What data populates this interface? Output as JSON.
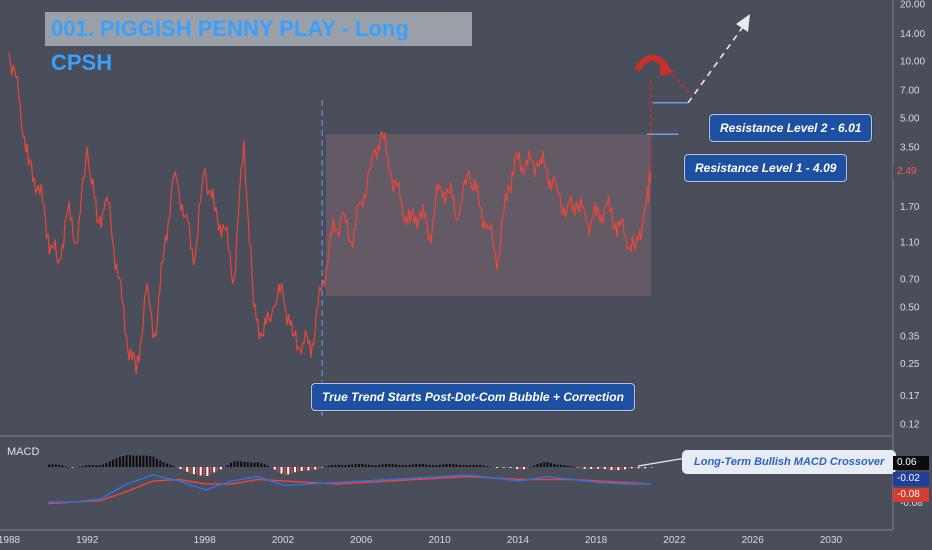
{
  "title": "001. PIGGISH PENNY PLAY - Long CPSH",
  "macd_label": "MACD",
  "annotations": {
    "resistance2": "Resistance Level 2 - 6.01",
    "resistance1": "Resistance Level 1 - 4.09",
    "trend": "True Trend Starts Post-Dot-Com Bubble + Correction",
    "macd_note": "Long-Term Bullish MACD Crossover"
  },
  "colors": {
    "background": "#4a4e5a",
    "price": "#e8473a",
    "box": "#7a6470",
    "label_blue": "#1e50a2",
    "macd_line": "#2e6fe0",
    "signal_line": "#e8473a",
    "resistance": "#6a9df0"
  },
  "price_axis": {
    "scale": "log",
    "ticks": [
      "20.00",
      "14.00",
      "10.00",
      "7.00",
      "5.00",
      "3.50",
      "2.49",
      "1.70",
      "1.10",
      "0.70",
      "0.50",
      "0.35",
      "0.25",
      "0.17",
      "0.12"
    ],
    "current_price": "2.49"
  },
  "macd_axis": {
    "values": [
      "0.06",
      "-0.02",
      "-0.08"
    ]
  },
  "time_axis": {
    "ticks": [
      "1988",
      "1992",
      "1998",
      "2002",
      "2006",
      "2010",
      "2014",
      "2018",
      "2022",
      "2026",
      "2030"
    ]
  },
  "chart_data": {
    "type": "line",
    "title": "001. PIGGISH PENNY PLAY - Long CPSH",
    "yscale": "log",
    "ylim": [
      0.1,
      22
    ],
    "xlim": [
      1988,
      2031
    ],
    "series": [
      {
        "x": [
          1988.0,
          1988.5,
          1989.0,
          1989.5,
          1990.0,
          1990.5,
          1991.0,
          1991.5,
          1992.0,
          1992.5,
          1993.0,
          1993.5,
          1994.0,
          1994.5,
          1995.0,
          1995.5,
          1996.0,
          1996.5,
          1997.0,
          1997.5,
          1998.0,
          1998.5,
          1999.0,
          1999.5,
          2000.0,
          2000.5,
          2001.0,
          2001.5,
          2002.0,
          2002.5,
          2003.0,
          2003.5,
          2004.0,
          2004.5,
          2005.0,
          2005.5,
          2006.0,
          2006.5,
          2007.0,
          2007.5,
          2008.0,
          2008.5,
          2009.0,
          2009.5,
          2010.0,
          2010.5,
          2011.0,
          2011.5,
          2012.0,
          2012.5,
          2013.0,
          2013.5,
          2014.0,
          2014.5,
          2015.0,
          2015.5,
          2016.0,
          2016.5,
          2017.0,
          2017.5,
          2018.0,
          2018.5,
          2019.0,
          2019.5,
          2020.0,
          2020.5,
          2020.8
        ],
        "values": [
          11,
          6.5,
          2.8,
          2.2,
          1.2,
          0.85,
          1.6,
          1.1,
          3.5,
          1.4,
          1.9,
          0.85,
          0.35,
          0.22,
          0.6,
          0.35,
          1.2,
          2.6,
          1.5,
          0.9,
          2.7,
          1.6,
          1.3,
          0.7,
          3.8,
          0.5,
          0.35,
          0.5,
          0.6,
          0.35,
          0.32,
          0.32,
          0.65,
          1.2,
          1.5,
          1.1,
          1.8,
          2.8,
          4.2,
          2.6,
          1.8,
          1.4,
          1.6,
          1.2,
          2.2,
          2.0,
          1.5,
          2.6,
          1.8,
          1.3,
          0.9,
          2.2,
          3.0,
          2.8,
          2.9,
          2.6,
          2.1,
          1.6,
          1.8,
          1.4,
          1.5,
          1.7,
          1.4,
          1.2,
          1.0,
          1.7,
          2.49
        ]
      }
    ],
    "macd": {
      "values": [
        -0.12,
        -0.12,
        -0.1,
        0.0,
        0.06,
        0.02,
        -0.04,
        0.02,
        0.05,
        -0.01,
        0.0,
        0.01,
        0.02,
        0.03,
        0.04,
        0.05,
        0.06,
        0.04,
        0.02,
        0.05,
        0.03,
        0.01,
        0.0,
        0.0
      ],
      "signal": [
        -0.13,
        -0.12,
        -0.11,
        -0.05,
        0.02,
        0.03,
        0.0,
        0.0,
        0.03,
        0.02,
        0.01,
        0.0,
        0.01,
        0.02,
        0.03,
        0.04,
        0.05,
        0.04,
        0.03,
        0.03,
        0.03,
        0.02,
        0.01,
        0.0
      ]
    }
  }
}
